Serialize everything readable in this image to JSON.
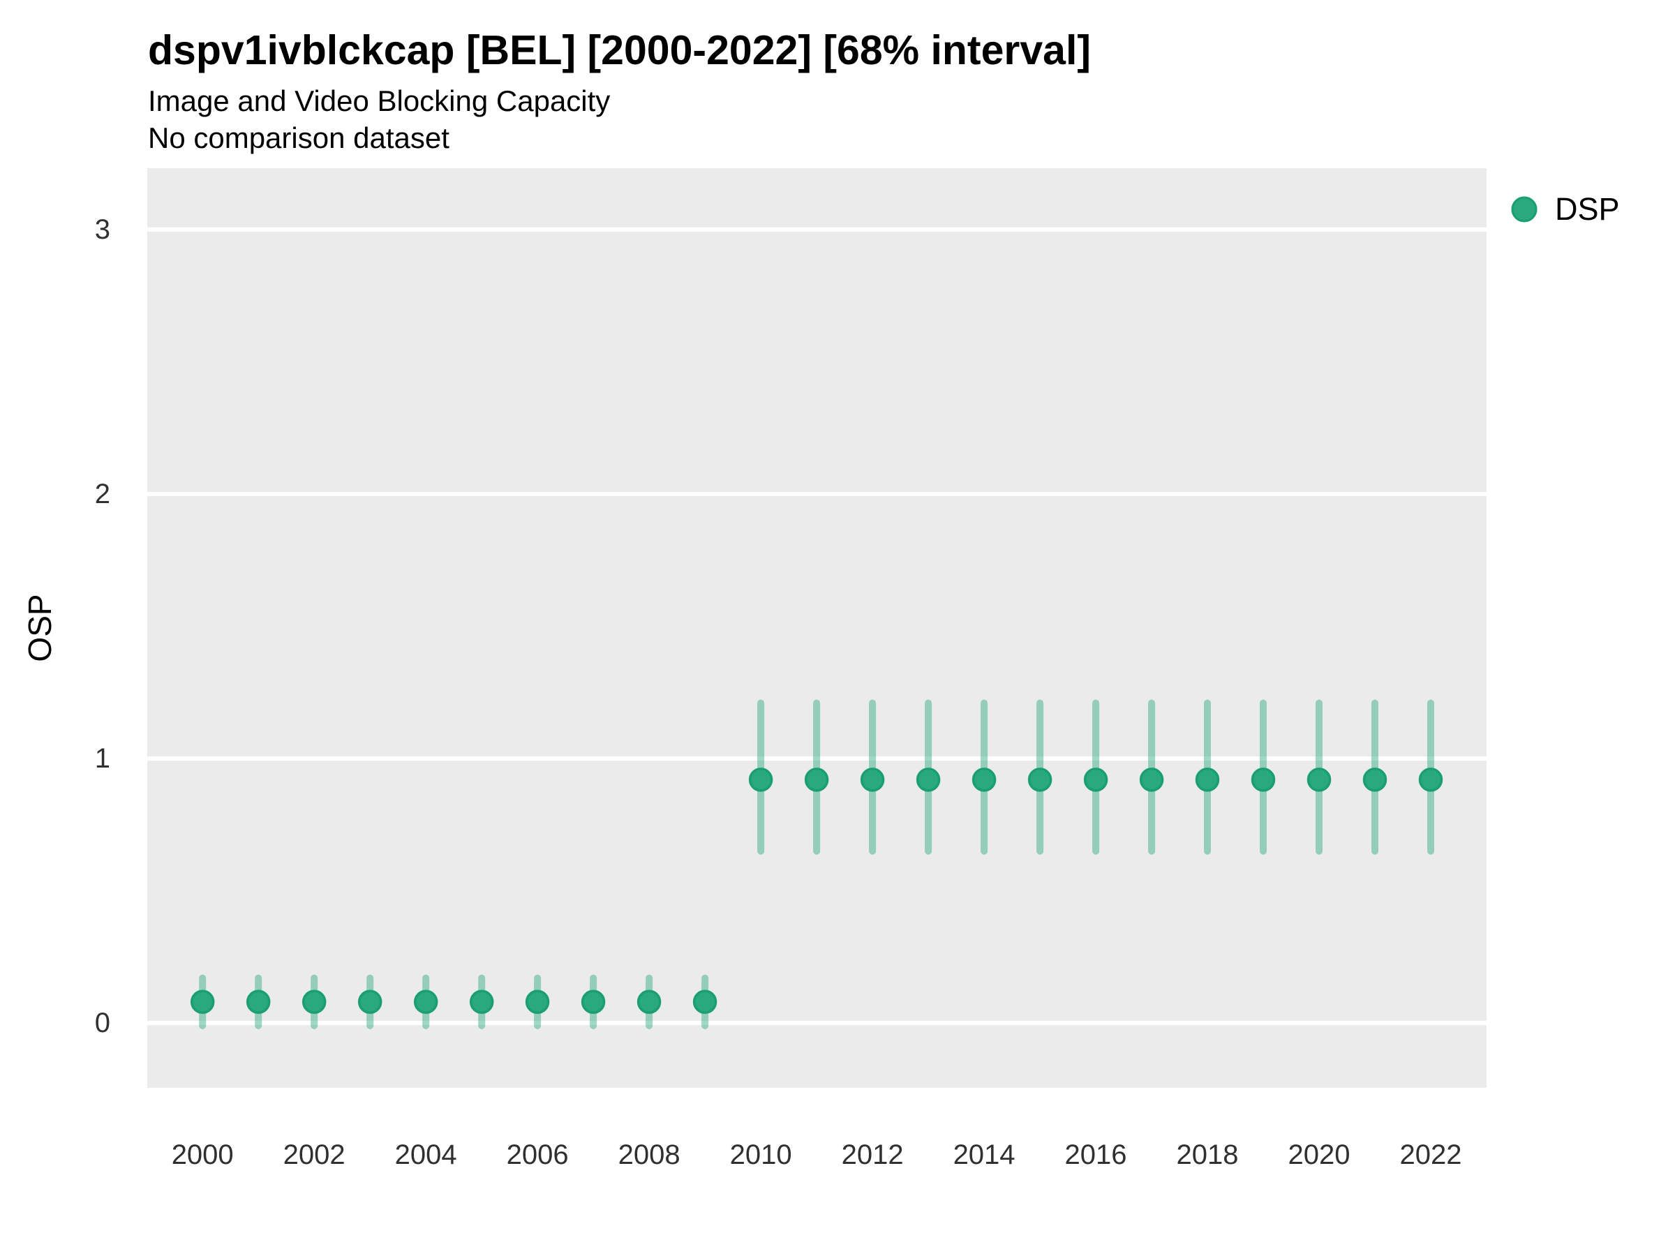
{
  "chart": {
    "title": "dspv1ivblckcap [BEL] [2000-2022] [68% interval]",
    "subtitle": "Image and Video Blocking Capacity",
    "note": "No comparison dataset",
    "ylabel": "OSP",
    "legend_label": "DSP"
  },
  "chart_data": {
    "type": "pointrange-scatter",
    "title": "dspv1ivblckcap [BEL] [2000-2022] [68% interval]",
    "subtitle": "Image and Video Blocking Capacity",
    "annotation": "No comparison dataset",
    "interval_label": "68% interval",
    "xlabel": "",
    "ylabel": "OSP",
    "grid": "major-horizontal-only",
    "legend_position": "right-top",
    "xlim": [
      1999.01,
      2023.0
    ],
    "ylim": [
      -0.245,
      3.232
    ],
    "xtick_values": [
      2000,
      2002,
      2004,
      2006,
      2008,
      2010,
      2012,
      2014,
      2016,
      2018,
      2020,
      2022
    ],
    "xtick_labels": [
      "2000",
      "2002",
      "2004",
      "2006",
      "2008",
      "2010",
      "2012",
      "2014",
      "2016",
      "2018",
      "2020",
      "2022"
    ],
    "ytick_values": [
      0,
      1,
      2,
      3
    ],
    "ytick_labels": [
      "0",
      "1",
      "2",
      "3"
    ],
    "series": [
      {
        "name": "DSP",
        "x": [
          2000,
          2001,
          2002,
          2003,
          2004,
          2005,
          2006,
          2007,
          2008,
          2009,
          2010,
          2011,
          2012,
          2013,
          2014,
          2015,
          2016,
          2017,
          2018,
          2019,
          2020,
          2021,
          2022
        ],
        "y": [
          0.08,
          0.08,
          0.08,
          0.08,
          0.08,
          0.08,
          0.08,
          0.08,
          0.08,
          0.08,
          0.92,
          0.92,
          0.92,
          0.92,
          0.92,
          0.92,
          0.92,
          0.92,
          0.92,
          0.92,
          0.92,
          0.92,
          0.92
        ],
        "y_lo": [
          -0.01,
          -0.01,
          -0.01,
          -0.01,
          -0.01,
          -0.01,
          -0.01,
          -0.01,
          -0.01,
          -0.01,
          0.65,
          0.65,
          0.65,
          0.65,
          0.65,
          0.65,
          0.65,
          0.65,
          0.65,
          0.65,
          0.65,
          0.65,
          0.65
        ],
        "y_hi": [
          0.17,
          0.17,
          0.17,
          0.17,
          0.17,
          0.17,
          0.17,
          0.17,
          0.17,
          0.17,
          1.21,
          1.21,
          1.21,
          1.21,
          1.21,
          1.21,
          1.21,
          1.21,
          1.21,
          1.21,
          1.21,
          1.21,
          1.21
        ]
      }
    ],
    "colors": {
      "point_fill": "#2aa87e",
      "point_stroke": "#1b9e73",
      "interval": "rgba(42,168,126,0.45)",
      "panel_bg": "#ebebeb",
      "gridline": "#ffffff",
      "tick_text": "#303030"
    }
  }
}
